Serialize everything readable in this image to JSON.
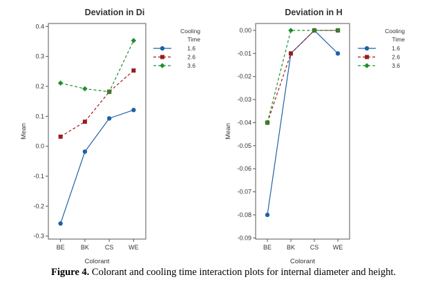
{
  "caption": {
    "label": "Figure 4.",
    "text": "Colorant and cooling time interaction plots for internal diameter and height."
  },
  "chart_data": [
    {
      "type": "line",
      "title": "Deviation in Di",
      "xlabel": "Colorant",
      "ylabel": "Mean",
      "categories": [
        "BE",
        "BK",
        "CS",
        "WE"
      ],
      "ylim": [
        -0.31,
        0.41
      ],
      "yticks": [
        "0.4",
        "0.3",
        "0.2",
        "0.1",
        "0.0",
        "-0.1",
        "-0.2",
        "-0.3"
      ],
      "ytick_values": [
        0.4,
        0.3,
        0.2,
        0.1,
        0.0,
        -0.1,
        -0.2,
        -0.3
      ],
      "legend": {
        "title_line1": "Cooling",
        "title_line2": "Time",
        "position": "right"
      },
      "series": [
        {
          "name": "1.6",
          "color": "#1f5fa8",
          "marker": "circle",
          "dash": "solid",
          "values": [
            -0.258,
            -0.018,
            0.093,
            0.121
          ]
        },
        {
          "name": "2.6",
          "color": "#9b1c1c",
          "marker": "square",
          "dash": "dashed",
          "values": [
            0.032,
            0.082,
            0.182,
            0.253
          ]
        },
        {
          "name": "3.6",
          "color": "#1e8f2e",
          "marker": "diamond",
          "dash": "dashed",
          "values": [
            0.211,
            0.192,
            0.182,
            0.353
          ]
        }
      ]
    },
    {
      "type": "line",
      "title": "Deviation in H",
      "xlabel": "Colorant",
      "ylabel": "Mean",
      "categories": [
        "BE",
        "BK",
        "CS",
        "WE"
      ],
      "ylim": [
        -0.0905,
        0.003
      ],
      "yticks": [
        "0.00",
        "-0.01",
        "-0.02",
        "-0.03",
        "-0.04",
        "-0.05",
        "-0.06",
        "-0.07",
        "-0.08",
        "-0.09"
      ],
      "ytick_values": [
        0.0,
        -0.01,
        -0.02,
        -0.03,
        -0.04,
        -0.05,
        -0.06,
        -0.07,
        -0.08,
        -0.09
      ],
      "legend": {
        "title_line1": "Cooling",
        "title_line2": "Time",
        "position": "right"
      },
      "series": [
        {
          "name": "1.6",
          "color": "#1f5fa8",
          "marker": "circle",
          "dash": "solid",
          "values": [
            -0.08,
            -0.01,
            0.0,
            -0.01
          ]
        },
        {
          "name": "2.6",
          "color": "#9b1c1c",
          "marker": "square",
          "dash": "dashed",
          "values": [
            -0.04,
            -0.01,
            0.0,
            0.0
          ]
        },
        {
          "name": "3.6",
          "color": "#1e8f2e",
          "marker": "diamond",
          "dash": "dashed",
          "values": [
            -0.04,
            0.0,
            0.0,
            0.0
          ]
        }
      ]
    }
  ]
}
